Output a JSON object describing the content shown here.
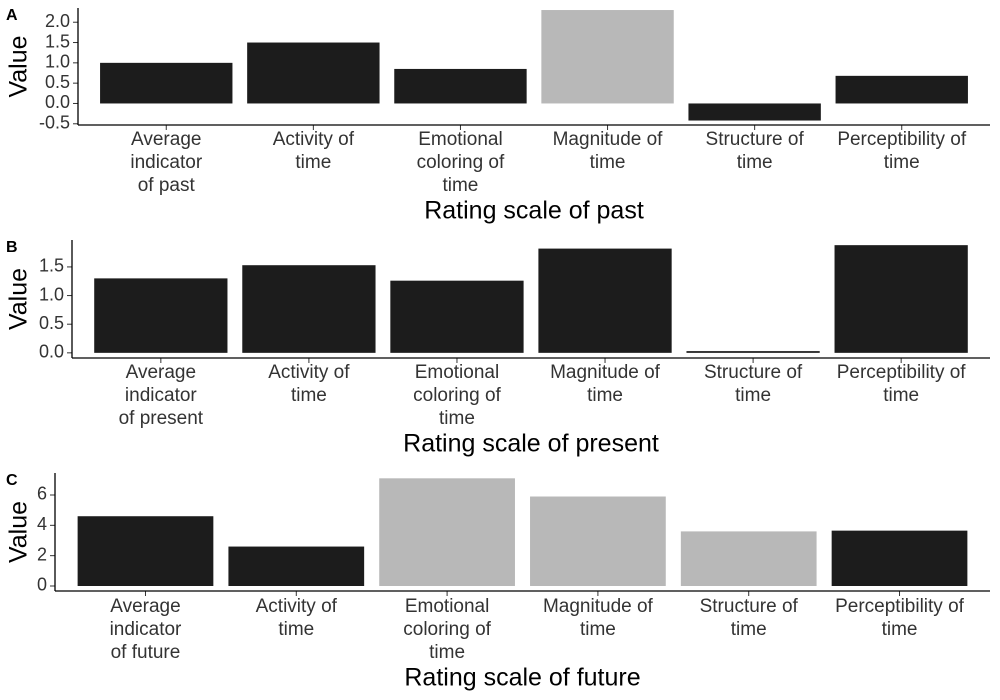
{
  "chart_data": [
    {
      "type": "bar",
      "panel_label": "A",
      "y_label": "Value",
      "x_label": "Rating scale of past",
      "categories": [
        [
          "Average",
          "indicator",
          "of past"
        ],
        [
          "Activity of",
          "time"
        ],
        [
          "Emotional",
          "coloring of",
          "time"
        ],
        [
          "Magnitude of",
          "time"
        ],
        [
          "Structure of",
          "time"
        ],
        [
          "Perceptibility of",
          "time"
        ]
      ],
      "values": [
        1.0,
        1.5,
        0.85,
        2.3,
        -0.42,
        0.68
      ],
      "colors": [
        "#1c1c1c",
        "#1c1c1c",
        "#1c1c1c",
        "#b8b8b8",
        "#1c1c1c",
        "#1c1c1c"
      ],
      "ylim": [
        -0.53,
        2.35
      ],
      "yticks": [
        -0.5,
        {
          "value": 0,
          "label": "0.0"
        },
        0.5,
        {
          "value": 1,
          "label": "1.0"
        },
        1.5,
        {
          "value": 2,
          "label": "2.0"
        }
      ]
    },
    {
      "type": "bar",
      "panel_label": "B",
      "y_label": "Value",
      "x_label": "Rating scale of present",
      "categories": [
        [
          "Average",
          "indicator",
          "of present"
        ],
        [
          "Activity of",
          "time"
        ],
        [
          "Emotional",
          "coloring of",
          "time"
        ],
        [
          "Magnitude of",
          "time"
        ],
        [
          "Structure of",
          "time"
        ],
        [
          "Perceptibility of",
          "time"
        ]
      ],
      "values": [
        1.3,
        1.53,
        1.26,
        1.82,
        0.03,
        1.88
      ],
      "colors": [
        "#1c1c1c",
        "#1c1c1c",
        "#1c1c1c",
        "#1c1c1c",
        "#1c1c1c",
        "#1c1c1c"
      ],
      "ylim": [
        -0.09,
        1.97
      ],
      "yticks": [
        {
          "value": 0,
          "label": "0.0"
        },
        0.5,
        {
          "value": 1,
          "label": "1.0"
        },
        1.5
      ]
    },
    {
      "type": "bar",
      "panel_label": "C",
      "y_label": "Value",
      "x_label": "Rating scale of future",
      "categories": [
        [
          "Average",
          "indicator",
          "of future"
        ],
        [
          "Activity of",
          "time"
        ],
        [
          "Emotional",
          "coloring of",
          "time"
        ],
        [
          "Magnitude of",
          "time"
        ],
        [
          "Structure of",
          "time"
        ],
        [
          "Perceptibility of",
          "time"
        ]
      ],
      "values": [
        4.6,
        2.6,
        7.1,
        5.9,
        3.6,
        3.65
      ],
      "colors": [
        "#1c1c1c",
        "#1c1c1c",
        "#b8b8b8",
        "#b8b8b8",
        "#b8b8b8",
        "#1c1c1c"
      ],
      "ylim": [
        -0.33,
        7.45
      ],
      "yticks": [
        0,
        2,
        4,
        6
      ]
    }
  ]
}
